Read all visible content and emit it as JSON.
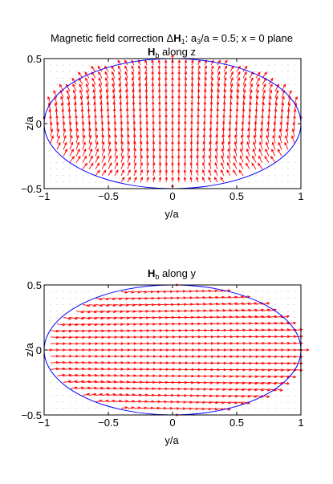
{
  "figure": {
    "main_title_pre": "Magnetic field correction ",
    "main_title_delta": "Δ",
    "main_title_H": "H",
    "main_title_sub": "1",
    "main_title_mid": ": a",
    "main_title_a_sub": "3",
    "main_title_post": "/a = 0.5; x = 0 plane"
  },
  "chart_data": [
    {
      "type": "quiver",
      "title_H": "H",
      "title_sub": "b",
      "title_rest": " along z",
      "xlabel": "y/a",
      "ylabel": "z/a",
      "xlim": [
        -1,
        1
      ],
      "ylim": [
        -0.5,
        0.5
      ],
      "xticks": [
        -1,
        -0.5,
        0,
        0.5,
        1
      ],
      "xtick_labels": [
        "−1",
        "−0.5",
        "0",
        "0.5",
        "1"
      ],
      "yticks": [
        -0.5,
        0,
        0.5
      ],
      "ytick_labels": [
        "−0.5",
        "0",
        "0.5"
      ],
      "ellipse": {
        "semi_axis_y": 1,
        "semi_axis_z": 0.5,
        "color": "#0000ff"
      },
      "arrow_color": "#ff0000",
      "grid_step": 0.05,
      "field_direction": "z"
    },
    {
      "type": "quiver",
      "title_H": "H",
      "title_sub": "b",
      "title_rest": " along y",
      "xlabel": "y/a",
      "ylabel": "z/a",
      "xlim": [
        -1,
        1
      ],
      "ylim": [
        -0.5,
        0.5
      ],
      "xticks": [
        -1,
        -0.5,
        0,
        0.5,
        1
      ],
      "xtick_labels": [
        "−1",
        "−0.5",
        "0",
        "0.5",
        "1"
      ],
      "yticks": [
        -0.5,
        0,
        0.5
      ],
      "ytick_labels": [
        "−0.5",
        "0",
        "0.5"
      ],
      "ellipse": {
        "semi_axis_y": 1,
        "semi_axis_z": 0.5,
        "color": "#0000ff"
      },
      "arrow_color": "#ff0000",
      "grid_step": 0.05,
      "field_direction": "y"
    }
  ]
}
